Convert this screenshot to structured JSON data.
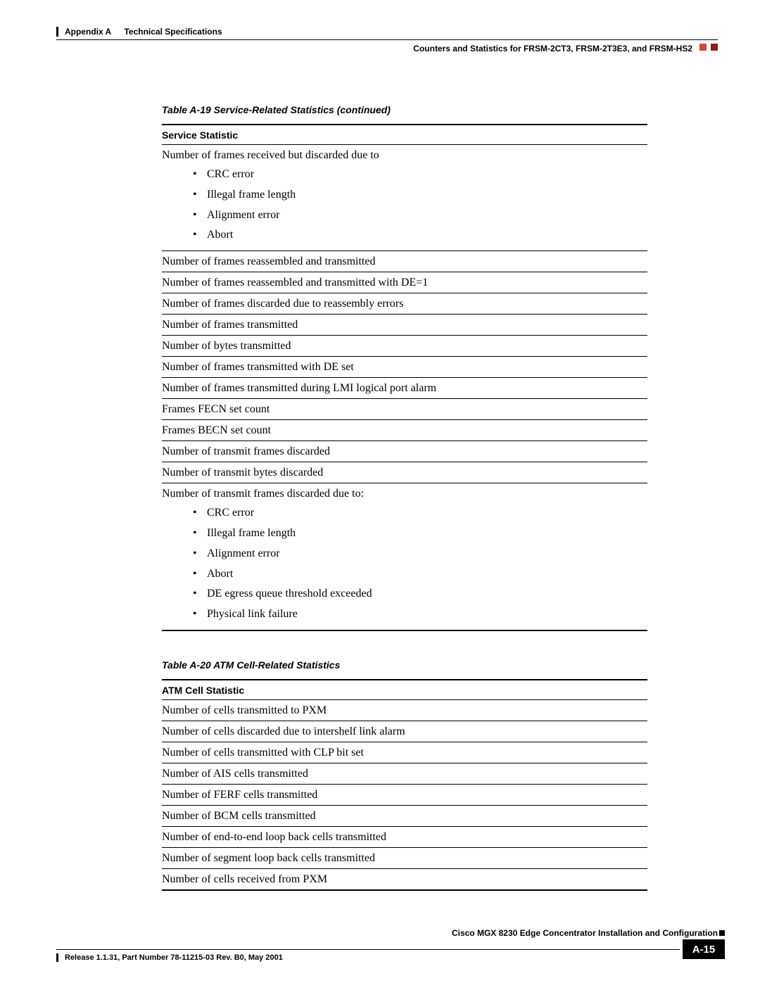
{
  "header": {
    "appendix_label": "Appendix A",
    "appendix_title": "Technical Specifications",
    "section": "Counters and Statistics for FRSM-2CT3, FRSM-2T3E3, and FRSM-HS2"
  },
  "table19": {
    "title": "Table A-19   Service-Related Statistics (continued)",
    "header": "Service Statistic",
    "rows": [
      {
        "text": "Number of frames received but discarded due to",
        "sub": [
          "CRC error",
          "Illegal frame length",
          "Alignment error",
          "Abort"
        ]
      },
      {
        "text": "Number of frames reassembled and transmitted"
      },
      {
        "text": "Number of frames reassembled and transmitted with DE=1"
      },
      {
        "text": "Number of frames discarded due to reassembly errors"
      },
      {
        "text": "Number of frames transmitted"
      },
      {
        "text": "Number of bytes transmitted"
      },
      {
        "text": "Number of frames transmitted with DE set"
      },
      {
        "text": "Number of frames transmitted during LMI logical port alarm"
      },
      {
        "text": "Frames FECN set count"
      },
      {
        "text": "Frames BECN set count"
      },
      {
        "text": "Number of transmit frames discarded"
      },
      {
        "text": "Number of transmit bytes discarded"
      },
      {
        "text": "Number of transmit frames discarded due to:",
        "sub": [
          "CRC error",
          "Illegal frame length",
          "Alignment error",
          "Abort",
          "DE egress queue threshold exceeded",
          "Physical link failure"
        ]
      }
    ]
  },
  "table20": {
    "title": "Table A-20   ATM Cell-Related Statistics",
    "header": "ATM Cell Statistic",
    "rows": [
      {
        "text": "Number of cells transmitted to PXM"
      },
      {
        "text": "Number of cells discarded due to intershelf link alarm"
      },
      {
        "text": "Number of cells transmitted with CLP bit set"
      },
      {
        "text": "Number of AIS cells transmitted"
      },
      {
        "text": "Number of FERF cells transmitted"
      },
      {
        "text": "Number of BCM cells transmitted"
      },
      {
        "text": "Number of end-to-end loop back cells transmitted"
      },
      {
        "text": "Number of segment loop back cells transmitted"
      },
      {
        "text": "Number of cells received from PXM"
      }
    ]
  },
  "footer": {
    "doc_title": "Cisco MGX 8230 Edge Concentrator Installation and Configuration",
    "page_number": "A-15",
    "release": "Release 1.1.31, Part Number 78-11215-03 Rev. B0, May 2001"
  }
}
